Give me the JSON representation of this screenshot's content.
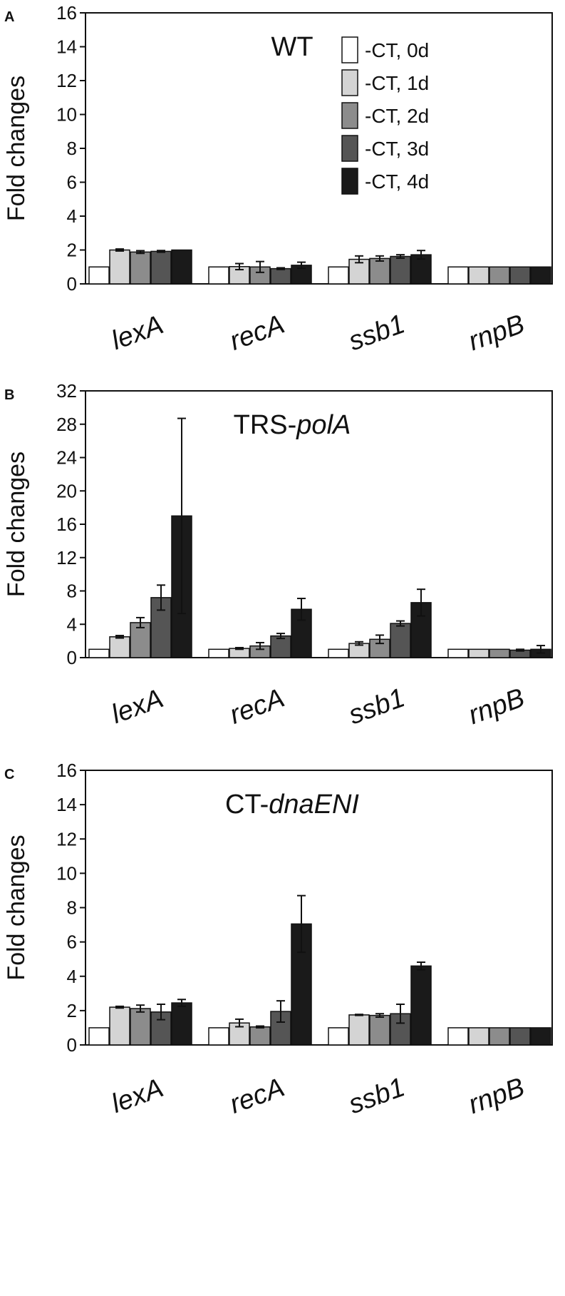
{
  "chart_data": [
    {
      "type": "bar",
      "panel": "A",
      "title": "WT",
      "title_italic": "",
      "ylabel": "Fold changes",
      "xlabel": "",
      "ylim": [
        0,
        16
      ],
      "yticks": [
        "0",
        "2",
        "4",
        "6",
        "8",
        "10",
        "12",
        "14",
        "16"
      ],
      "grid": false,
      "legend_position": "top-right",
      "categories": [
        "lexA",
        "recA",
        "ssb1",
        "rnpB"
      ],
      "series": [
        {
          "name": "-CT, 0d",
          "color": "#ffffff",
          "values": [
            1,
            1,
            1,
            1
          ],
          "errors": [
            0,
            0,
            0,
            0
          ]
        },
        {
          "name": "-CT, 1d",
          "color": "#d4d4d4",
          "values": [
            2.0,
            1.02,
            1.45,
            1.0
          ],
          "errors": [
            0.06,
            0.18,
            0.2,
            0
          ]
        },
        {
          "name": "-CT, 2d",
          "color": "#8c8c8c",
          "values": [
            1.88,
            1.0,
            1.5,
            1.0
          ],
          "errors": [
            0.08,
            0.32,
            0.15,
            0
          ]
        },
        {
          "name": "-CT, 3d",
          "color": "#555555",
          "values": [
            1.92,
            0.9,
            1.62,
            1.0
          ],
          "errors": [
            0.05,
            0.05,
            0.1,
            0
          ]
        },
        {
          "name": "-CT, 4d",
          "color": "#1a1a1a",
          "values": [
            2.0,
            1.1,
            1.72,
            1.0
          ],
          "errors": [
            0,
            0.18,
            0.25,
            0
          ]
        }
      ]
    },
    {
      "type": "bar",
      "panel": "B",
      "title": "TRS-",
      "title_italic": "polA",
      "ylabel": "Fold changes",
      "xlabel": "",
      "ylim": [
        0,
        32
      ],
      "yticks": [
        "0",
        "4",
        "8",
        "12",
        "16",
        "20",
        "24",
        "28",
        "32"
      ],
      "grid": false,
      "categories": [
        "lexA",
        "recA",
        "ssb1",
        "rnpB"
      ],
      "series": [
        {
          "name": "-CT, 0d",
          "color": "#ffffff",
          "values": [
            1,
            1,
            1,
            1
          ],
          "errors": [
            0,
            0,
            0,
            0
          ]
        },
        {
          "name": "-CT, 1d",
          "color": "#d4d4d4",
          "values": [
            2.5,
            1.1,
            1.7,
            1.0
          ],
          "errors": [
            0.15,
            0.1,
            0.2,
            0
          ]
        },
        {
          "name": "-CT, 2d",
          "color": "#8c8c8c",
          "values": [
            4.2,
            1.4,
            2.2,
            1.0
          ],
          "errors": [
            0.6,
            0.4,
            0.5,
            0
          ]
        },
        {
          "name": "-CT, 3d",
          "color": "#555555",
          "values": [
            7.2,
            2.6,
            4.1,
            0.9
          ],
          "errors": [
            1.5,
            0.3,
            0.3,
            0.1
          ]
        },
        {
          "name": "-CT, 4d",
          "color": "#1a1a1a",
          "values": [
            17.0,
            5.8,
            6.6,
            1.0
          ],
          "errors": [
            11.7,
            1.3,
            1.6,
            0.45
          ]
        }
      ]
    },
    {
      "type": "bar",
      "panel": "C",
      "title": "CT-",
      "title_italic": "dnaENI",
      "ylabel": "Fold changes",
      "xlabel": "",
      "ylim": [
        0,
        16
      ],
      "yticks": [
        "0",
        "2",
        "4",
        "6",
        "8",
        "10",
        "12",
        "14",
        "16"
      ],
      "grid": false,
      "categories": [
        "lexA",
        "recA",
        "ssb1",
        "rnpB"
      ],
      "series": [
        {
          "name": "-CT, 0d",
          "color": "#ffffff",
          "values": [
            1,
            1,
            1,
            1
          ],
          "errors": [
            0,
            0,
            0,
            0
          ]
        },
        {
          "name": "-CT, 1d",
          "color": "#d4d4d4",
          "values": [
            2.2,
            1.28,
            1.75,
            1.0
          ],
          "errors": [
            0.05,
            0.22,
            0.03,
            0
          ]
        },
        {
          "name": "-CT, 2d",
          "color": "#8c8c8c",
          "values": [
            2.12,
            1.05,
            1.72,
            1.0
          ],
          "errors": [
            0.2,
            0.05,
            0.1,
            0
          ]
        },
        {
          "name": "-CT, 3d",
          "color": "#555555",
          "values": [
            1.92,
            1.95,
            1.82,
            1.0
          ],
          "errors": [
            0.45,
            0.62,
            0.55,
            0
          ]
        },
        {
          "name": "-CT, 4d",
          "color": "#1a1a1a",
          "values": [
            2.45,
            7.05,
            4.6,
            1.0
          ],
          "errors": [
            0.2,
            1.65,
            0.22,
            0
          ]
        }
      ]
    }
  ]
}
